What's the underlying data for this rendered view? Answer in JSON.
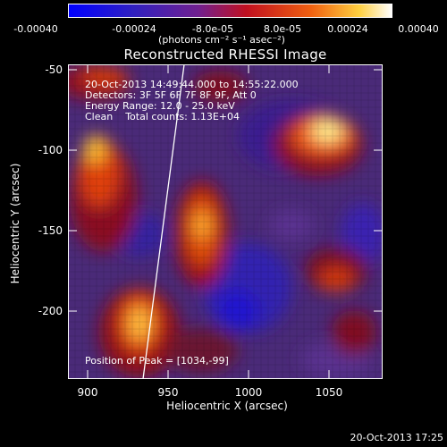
{
  "colorbar": {
    "ticks": [
      "-0.00040",
      "-0.00024",
      "-8.0e-05",
      "8.0e-05",
      "0.00024",
      "0.00040"
    ],
    "units": "(photons cm⁻² s⁻¹ asec⁻²)",
    "colors": [
      "#0000d8",
      "#4a2aa0",
      "#7a3ca0",
      "#d02418",
      "#f08020",
      "#fff8c0"
    ]
  },
  "title": "Reconstructed RHESSI Image",
  "annotations": {
    "time_range": "20-Oct-2013 14:49:44.000 to 14:55:22.000",
    "detectors": "Detectors: 3F 5F 6F 7F 8F 9F, Att 0",
    "energy": "Energy Range: 12.0 - 25.0 keV",
    "clean": "Clean    Total counts: 1.13E+04",
    "peak": "Position of Peak = [1034,-99]"
  },
  "x_axis": {
    "label": "Heliocentric X (arcsec)",
    "ticks": [
      "900",
      "950",
      "1000",
      "1050"
    ]
  },
  "y_axis": {
    "label": "Heliocentric Y (arcsec)",
    "ticks": [
      "-50",
      "-100",
      "-150",
      "-200"
    ]
  },
  "timestamp": "20-Oct-2013 17:25"
}
